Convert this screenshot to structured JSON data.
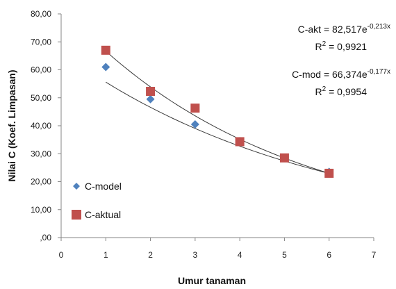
{
  "chart_data": {
    "type": "scatter",
    "xlabel": "Umur tanaman",
    "ylabel": "Nilai C (Koef. Limpasan)",
    "xlim": [
      0,
      7
    ],
    "ylim": [
      0,
      80
    ],
    "x_ticks": [
      "0",
      "1",
      "2",
      "3",
      "4",
      "5",
      "6",
      "7"
    ],
    "y_ticks": [
      ",00",
      "10,00",
      "20,00",
      "30,00",
      "40,00",
      "50,00",
      "60,00",
      "70,00",
      "80,00"
    ],
    "grid": false,
    "legend_position": "bottom-left",
    "series": [
      {
        "name": "C-model",
        "marker": "diamond",
        "color": "#4f81bd",
        "x": [
          1,
          2,
          3,
          4,
          5,
          6
        ],
        "y": [
          61,
          49.5,
          40.5,
          34.5,
          28.5,
          23.5
        ]
      },
      {
        "name": "C-aktual",
        "marker": "square",
        "color": "#c0504d",
        "x": [
          1,
          2,
          3,
          4,
          5,
          6
        ],
        "y": [
          67,
          52.3,
          46.3,
          34.3,
          28.5,
          23
        ]
      }
    ],
    "trendlines": [
      {
        "series": "C-aktual",
        "type": "exponential",
        "a": 82.517,
        "b": -0.213,
        "equation_prefix": "C-akt = 82,517e",
        "equation_exponent": "-0,213x",
        "r2_prefix": "R",
        "r2_sup": "2",
        "r2_value": " = 0,9921"
      },
      {
        "series": "C-model",
        "type": "exponential",
        "a": 66.374,
        "b": -0.177,
        "equation_prefix": "C-mod = 66,374e",
        "equation_exponent": "-0,177x",
        "r2_prefix": "R",
        "r2_sup": "2",
        "r2_value": " = 0,9954"
      }
    ]
  }
}
